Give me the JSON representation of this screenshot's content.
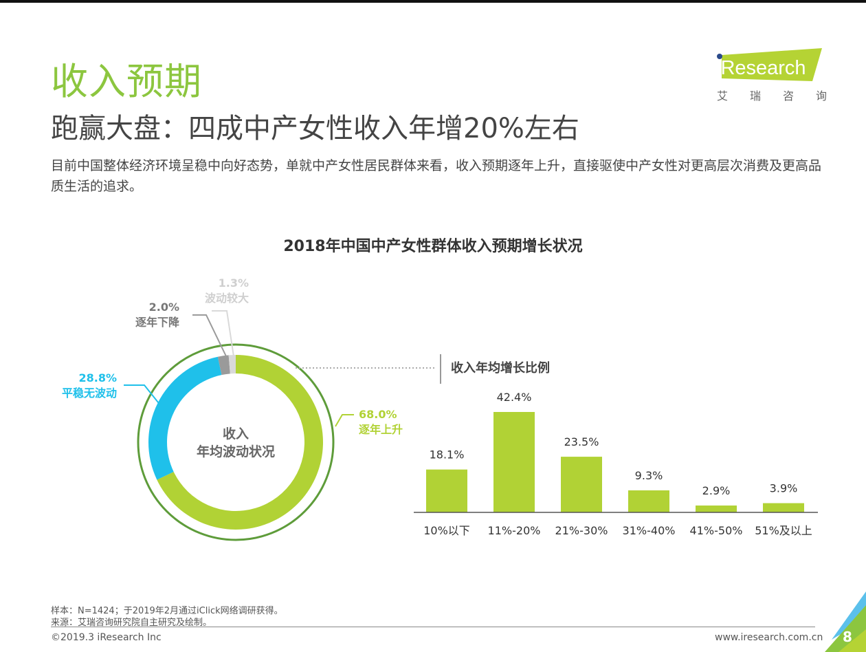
{
  "header": {
    "title": "收入预期",
    "subtitle": "跑赢大盘：四成中产女性收入年增20%左右",
    "description": "目前中国整体经济环境呈稳中向好态势，单就中产女性居民群体来看，收入预期逐年上升，直接驱使中产女性对更高层次消费及更高品质生活的追求。"
  },
  "logo": {
    "text": "iResearch",
    "chinese_chars": [
      "艾",
      "瑞",
      "咨",
      "询"
    ],
    "color": "#b5d334"
  },
  "chart_data": [
    {
      "type": "pie",
      "title": "2018年中国中产女性群体收入预期增长状况",
      "center_label_line1": "收入",
      "center_label_line2": "年均波动状况",
      "slices": [
        {
          "label": "逐年上升",
          "value": 68.0,
          "display": "68.0%",
          "color": "#b1d235"
        },
        {
          "label": "平稳无波动",
          "value": 28.8,
          "display": "28.8%",
          "color": "#1fc0ea"
        },
        {
          "label": "逐年下降",
          "value": 2.0,
          "display": "2.0%",
          "color": "#9a9a9a"
        },
        {
          "label": "波动较大",
          "value": 1.3,
          "display": "1.3%",
          "color": "#d9d9d9"
        }
      ],
      "ring_color": "#5e9c3a"
    },
    {
      "type": "bar",
      "title": "收入年均增长比例",
      "categories": [
        "10%以下",
        "11%-20%",
        "21%-30%",
        "31%-40%",
        "41%-50%",
        "51%及以上"
      ],
      "values": [
        18.1,
        42.4,
        23.5,
        9.3,
        2.9,
        3.9
      ],
      "value_labels": [
        "18.1%",
        "42.4%",
        "23.5%",
        "9.3%",
        "2.9%",
        "3.9%"
      ],
      "bar_color": "#b1d235",
      "ylim": [
        0,
        42.4
      ],
      "grid": false
    }
  ],
  "footer": {
    "sample_note": "样本：N=1424；于2019年2月通过iClick网络调研获得。",
    "source_note": "来源：艾瑞咨询研究院自主研究及绘制。",
    "copyright": "©2019.3 iResearch Inc",
    "website": "www.iresearch.com.cn",
    "page_number": "8"
  }
}
